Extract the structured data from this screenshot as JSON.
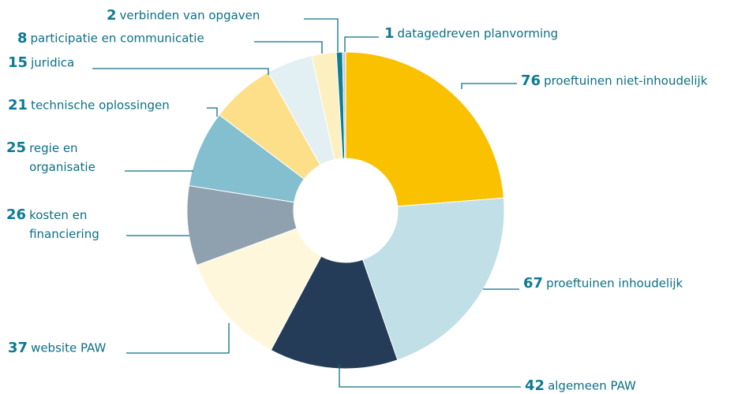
{
  "chart_data": {
    "type": "pie",
    "donut": true,
    "categories": [
      "proeftuinen niet-inhoudelijk",
      "proeftuinen inhoudelijk",
      "algemeen PAW",
      "website PAW",
      "kosten en financiering",
      "regie en organisatie",
      "technische oplossingen",
      "juridica",
      "participatie en communicatie",
      "verbinden van opgaven",
      "datagedreven planvorming"
    ],
    "values": [
      76,
      67,
      42,
      37,
      26,
      25,
      21,
      15,
      8,
      2,
      1
    ],
    "colors": [
      "#f9c100",
      "#c0dfe6",
      "#243c58",
      "#fef7dc",
      "#8fa1af",
      "#84bfd0",
      "#fddf8a",
      "#e2eff3",
      "#fdf0c0",
      "#0f7e93",
      "#c8ccd0"
    ]
  }
}
